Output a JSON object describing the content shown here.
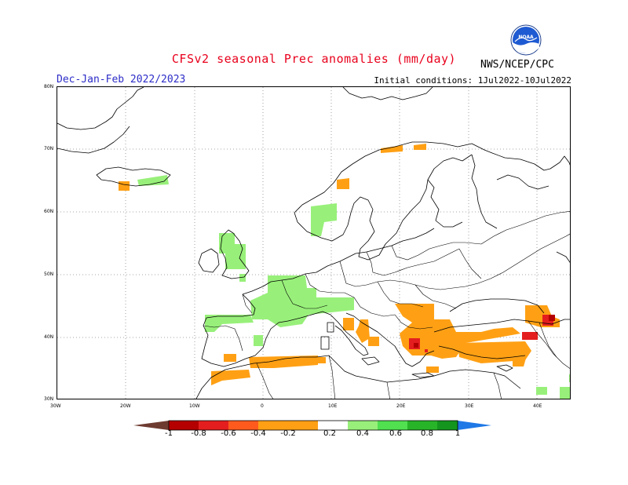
{
  "header": {
    "title": "CFSv2 seasonal Prec anomalies (mm/day)",
    "season": "Dec-Jan-Feb 2022/2023",
    "initial_conditions": "Initial conditions: 1Jul2022-10Jul2022",
    "agency": "NWS/NCEP/CPC",
    "logo_text": "NOAA"
  },
  "map": {
    "lon_range": [
      -30,
      45
    ],
    "lat_range": [
      30,
      80
    ],
    "lat_labels": [
      "80N",
      "70N",
      "60N",
      "50N",
      "40N",
      "30N"
    ],
    "lon_labels": [
      "30W",
      "20W",
      "10W",
      "0",
      "10E",
      "20E",
      "30E",
      "40E"
    ]
  },
  "colorbar": {
    "labels": [
      "-1",
      "-0.8",
      "-0.6",
      "-0.4",
      "-0.2",
      "0.2",
      "0.4",
      "0.6",
      "0.8",
      "1"
    ],
    "colors": [
      "#6e3b30",
      "#b40000",
      "#e41e1e",
      "#ff5a1e",
      "#ffa014",
      "#ffffff",
      "#98f07a",
      "#50e050",
      "#28b428",
      "#14961e",
      "#1e78e6"
    ]
  },
  "colors": {
    "dry_light": "#ffa014",
    "dry_mid": "#ff5a1e",
    "dry_strong": "#e41e1e",
    "dry_extreme": "#b40000",
    "wet_light": "#98f07a",
    "wet_mid": "#50e050",
    "title_red": "#e8001c",
    "season_blue": "#2c2cc8"
  }
}
